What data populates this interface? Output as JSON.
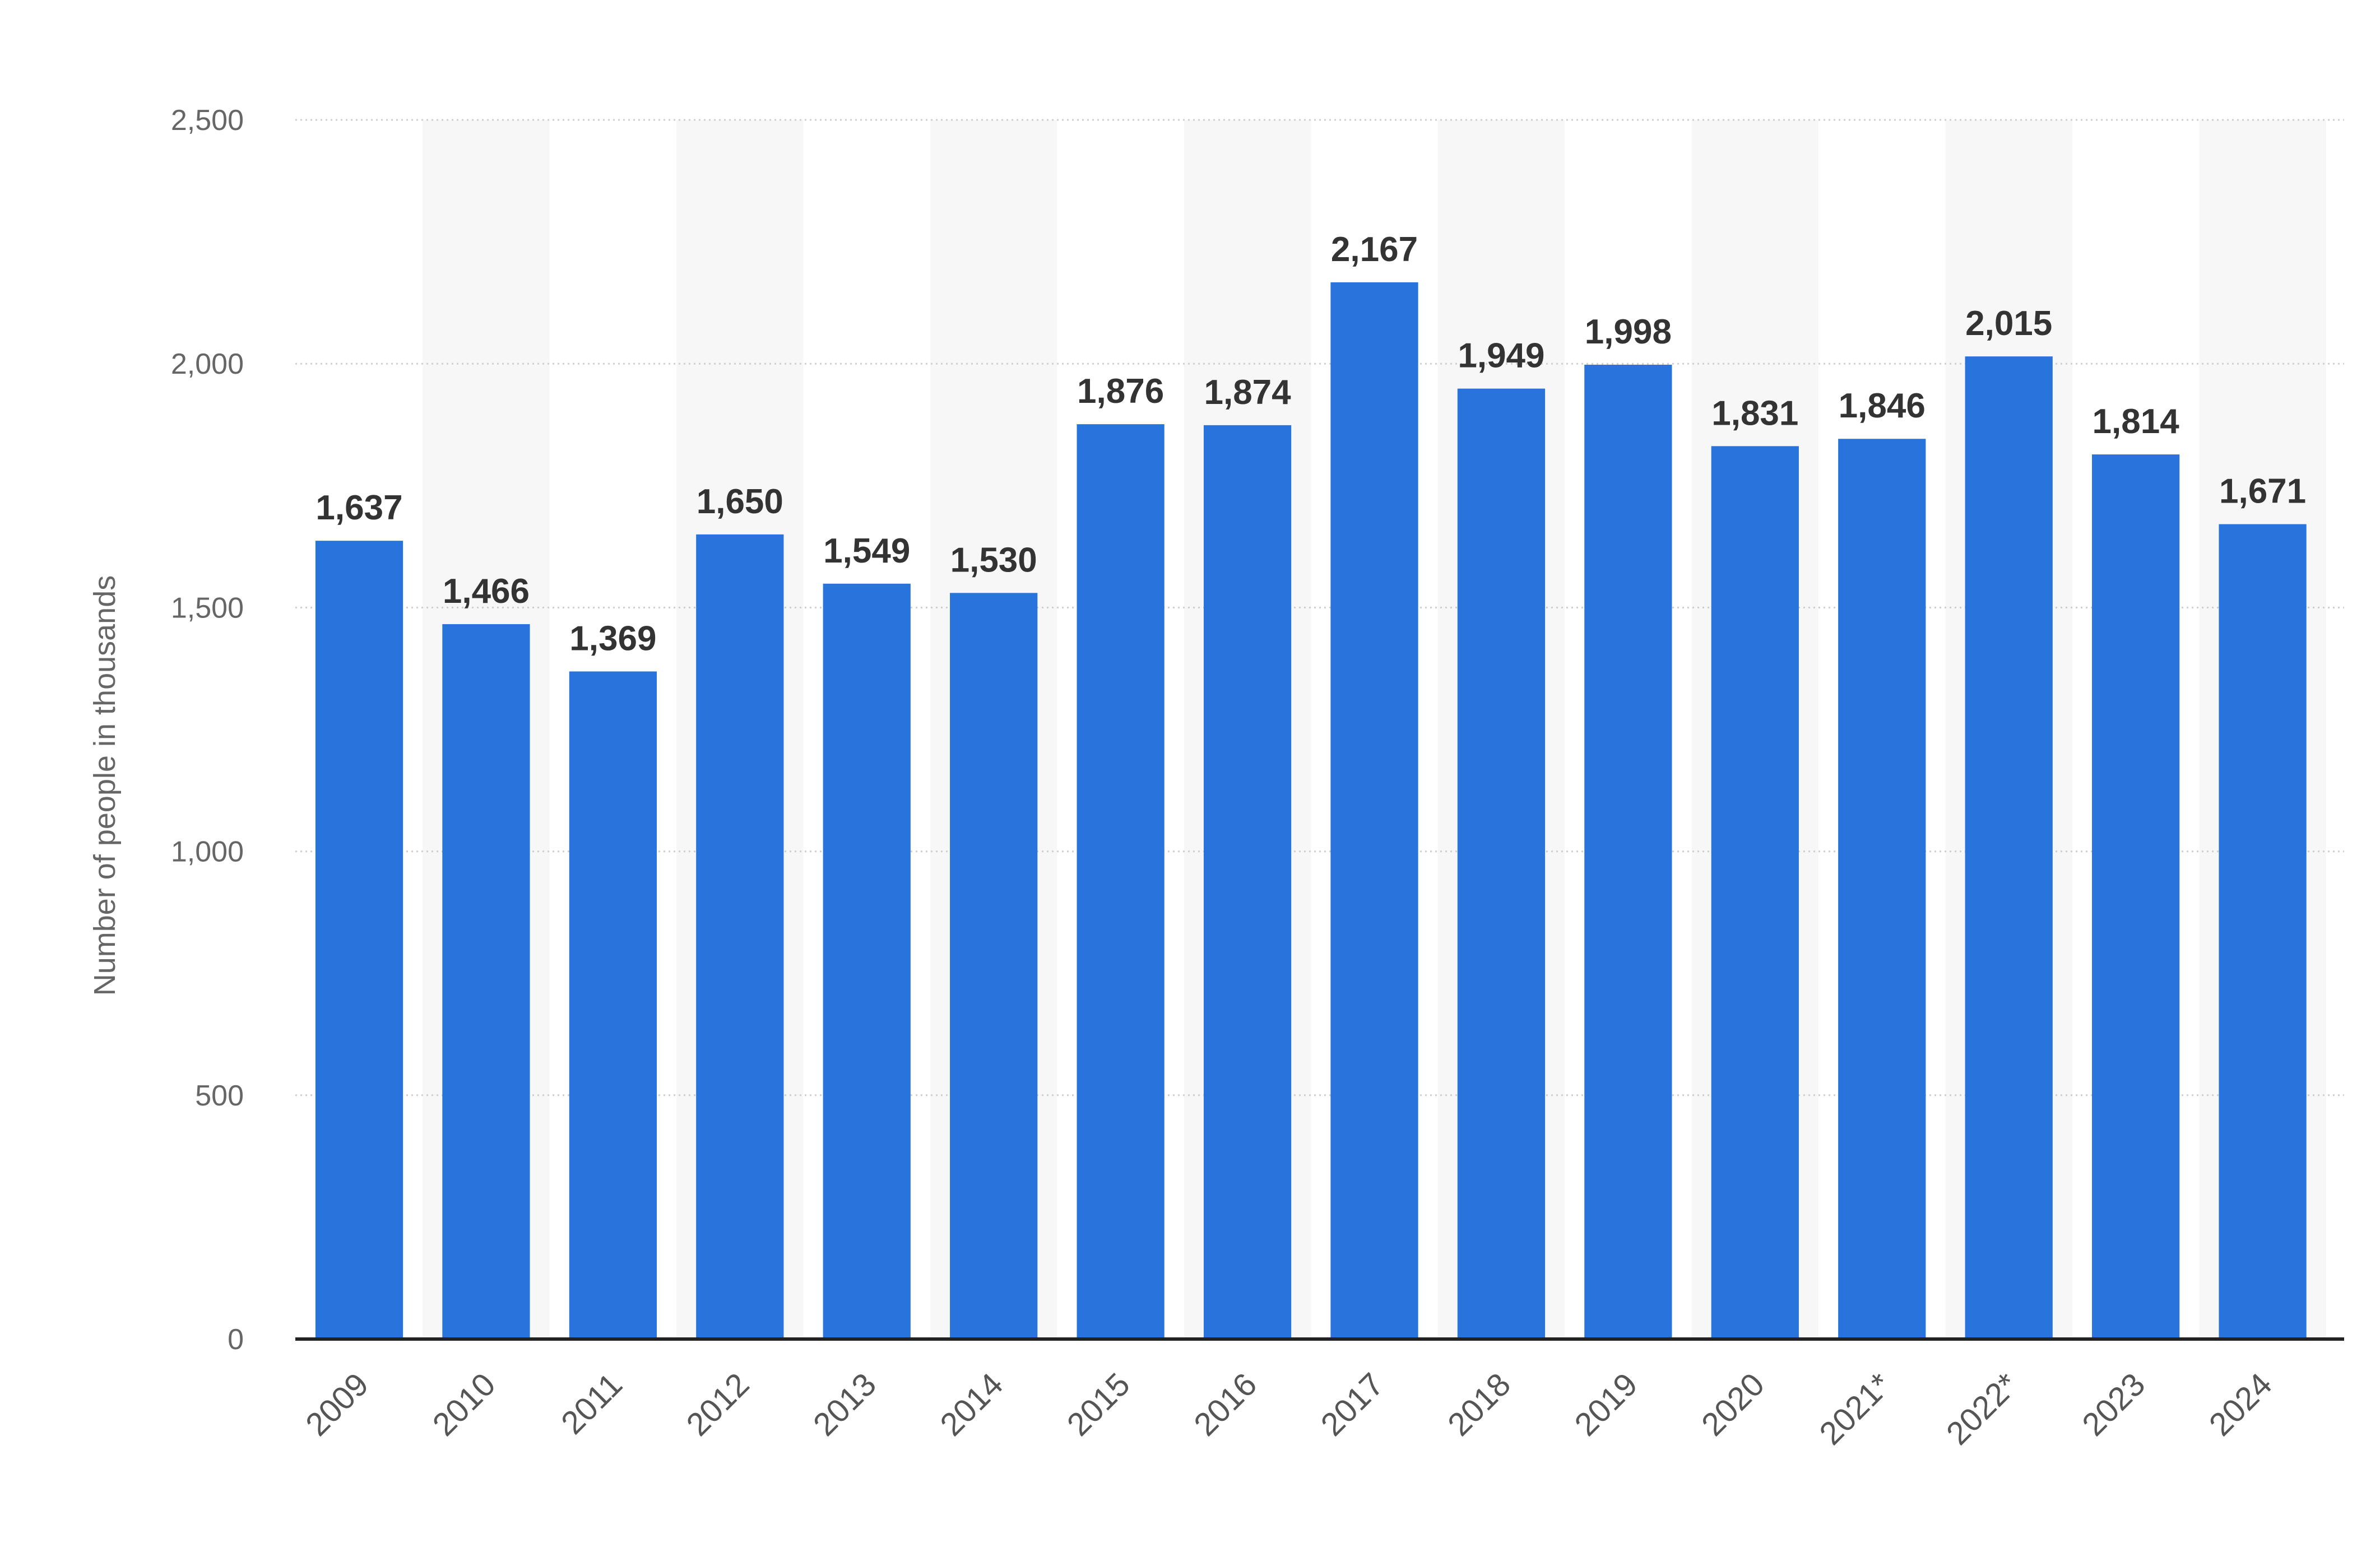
{
  "chart_data": {
    "type": "bar",
    "categories": [
      "2009",
      "2010",
      "2011",
      "2012",
      "2013",
      "2014",
      "2015",
      "2016",
      "2017",
      "2018",
      "2019",
      "2020",
      "2021*",
      "2022*",
      "2023",
      "2024"
    ],
    "values": [
      1637,
      1466,
      1369,
      1650,
      1549,
      1530,
      1876,
      1874,
      2167,
      1949,
      1998,
      1831,
      1846,
      2015,
      1814,
      1671
    ],
    "data_labels": [
      "1,637",
      "1,466",
      "1,369",
      "1,650",
      "1,549",
      "1,530",
      "1,876",
      "1,874",
      "2,167",
      "1,949",
      "1,998",
      "1,831",
      "1,846",
      "2,015",
      "1,814",
      "1,671"
    ],
    "ylabel": "Number of people in thousands",
    "xlabel": "",
    "ylim": [
      0,
      2500
    ],
    "yticks": [
      0,
      500,
      1000,
      1500,
      2000,
      2500
    ],
    "ytick_labels": [
      "0",
      "500",
      "1,000",
      "1,500",
      "2,000",
      "2,500"
    ],
    "grid": true,
    "legend": "none",
    "colors": {
      "bar": "#2874DC",
      "alt_band": "#F7F7F7",
      "grid": "#CFCFCF",
      "axis": "#222222"
    }
  }
}
